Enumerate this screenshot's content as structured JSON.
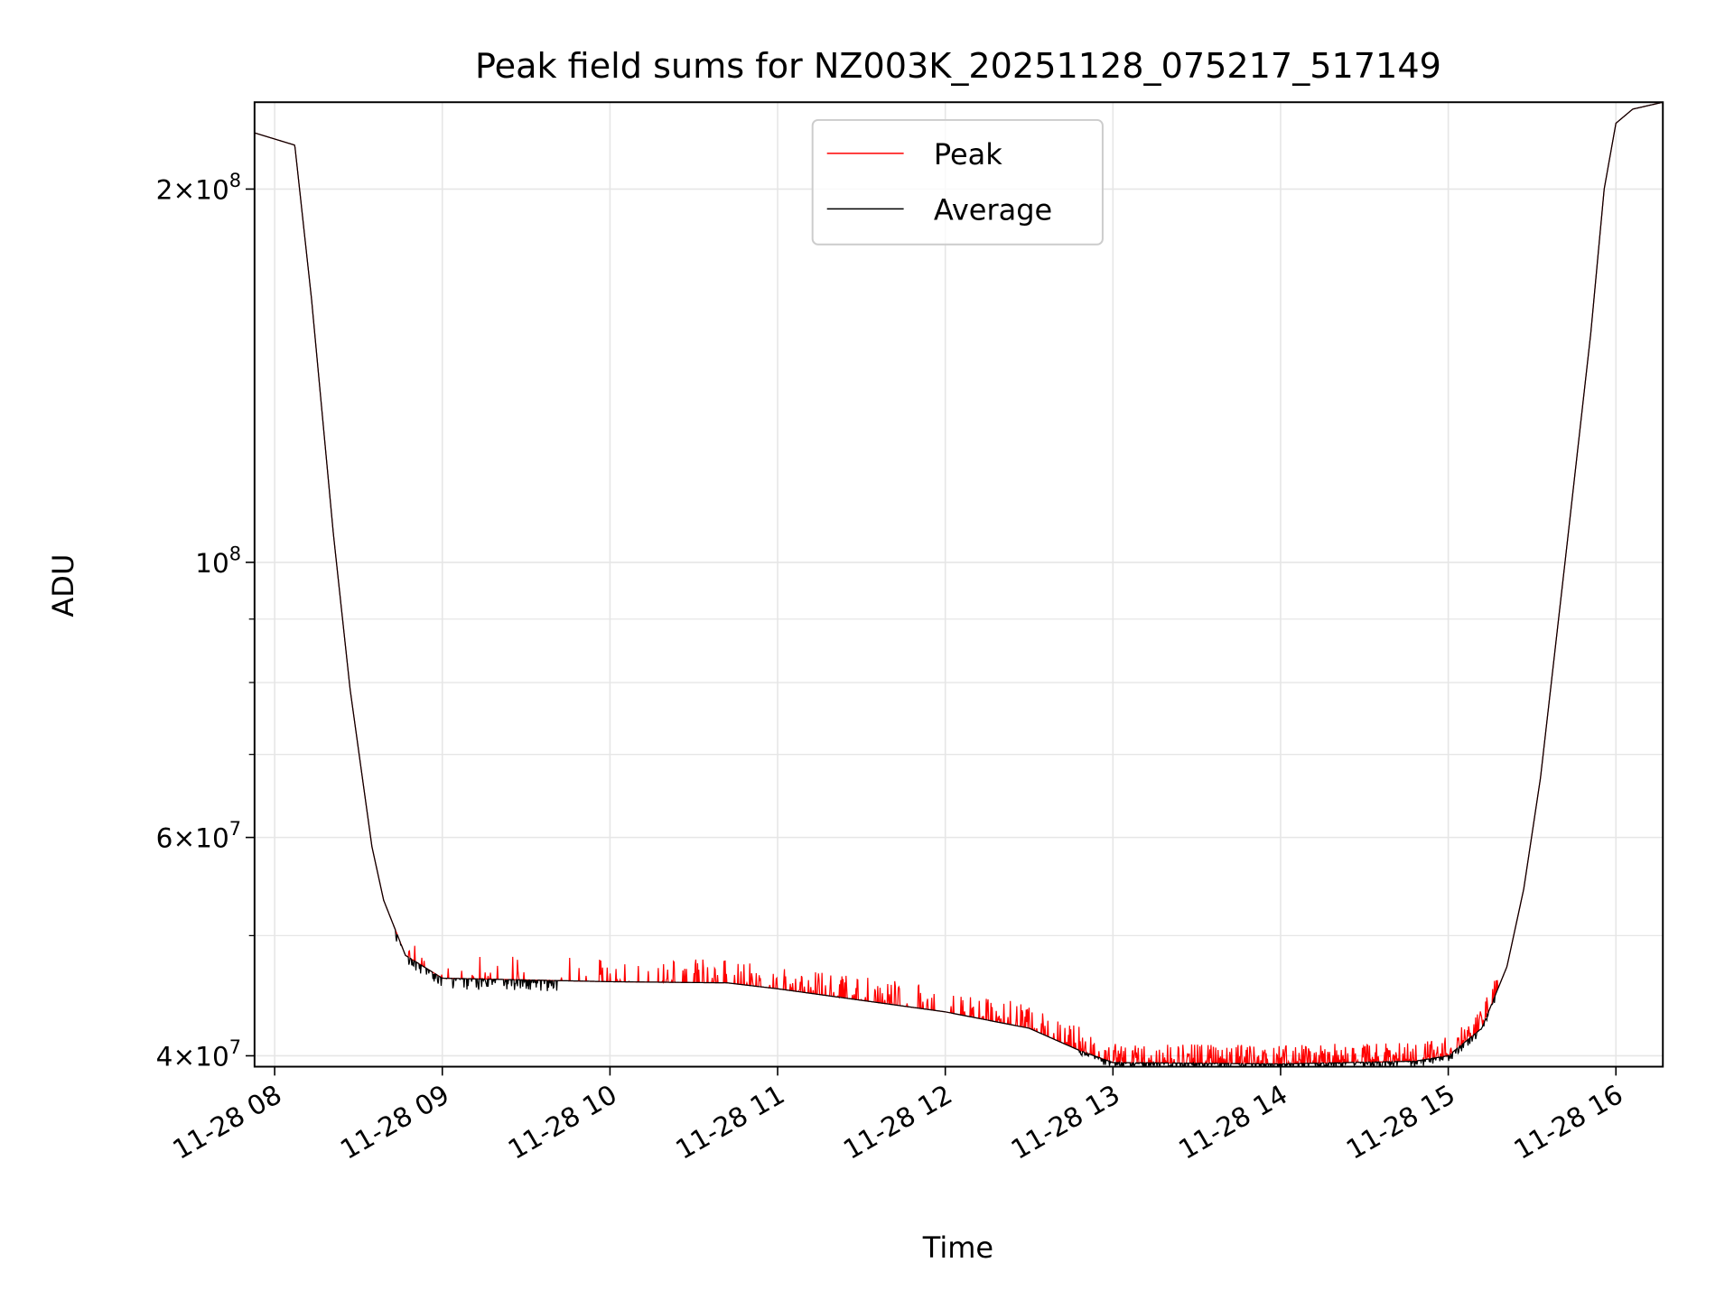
{
  "chart_data": {
    "type": "line",
    "title": "Peak field sums for NZ003K_20251128_075217_517149",
    "xlabel": "Time",
    "ylabel": "ADU",
    "yscale": "log",
    "xlim_hours": [
      7.88,
      16.28
    ],
    "ylim": [
      39200000,
      235000000
    ],
    "grid": true,
    "legend_placement": "upper-center",
    "xticks": [
      {
        "value": 8,
        "label": "11-28 08"
      },
      {
        "value": 9,
        "label": "11-28 09"
      },
      {
        "value": 10,
        "label": "11-28 10"
      },
      {
        "value": 11,
        "label": "11-28 11"
      },
      {
        "value": 12,
        "label": "11-28 12"
      },
      {
        "value": 13,
        "label": "11-28 13"
      },
      {
        "value": 14,
        "label": "11-28 14"
      },
      {
        "value": 15,
        "label": "11-28 15"
      },
      {
        "value": 16,
        "label": "11-28 16"
      }
    ],
    "yticks_major": [
      {
        "value": 200000000,
        "mant": "2",
        "exp": "8"
      },
      {
        "value": 100000000,
        "mant": "",
        "exp": "8"
      },
      {
        "value": 60000000,
        "mant": "6",
        "exp": "7"
      },
      {
        "value": 40000000,
        "mant": "4",
        "exp": "7"
      }
    ],
    "yticks_minor": [
      50000000,
      70000000,
      80000000,
      90000000
    ],
    "series": [
      {
        "name": "Peak",
        "color": "#ff0000",
        "spike_max_fraction": 0.045
      },
      {
        "name": "Average",
        "color": "#000000",
        "dip_max_fraction": 0.02
      }
    ],
    "baseline": {
      "hours": [
        7.88,
        8.12,
        8.22,
        8.35,
        8.45,
        8.58,
        8.65,
        8.78,
        9.0,
        10.0,
        10.7,
        11.0,
        12.0,
        12.5,
        12.8,
        13.0,
        14.0,
        14.8,
        15.0,
        15.2,
        15.35,
        15.45,
        15.55,
        15.7,
        15.85,
        15.93,
        16.0,
        16.1,
        16.28
      ],
      "values": [
        222000000,
        217000000,
        163000000,
        105500000,
        79000000,
        59000000,
        53400000,
        48200000,
        46200000,
        45900000,
        45800000,
        45300000,
        43400000,
        42100000,
        40400000,
        39500000,
        39400000,
        39600000,
        40000000,
        42100000,
        47200000,
        54500000,
        67000000,
        101000000,
        153000000,
        200000000,
        226000000,
        232000000,
        235000000
      ]
    }
  }
}
